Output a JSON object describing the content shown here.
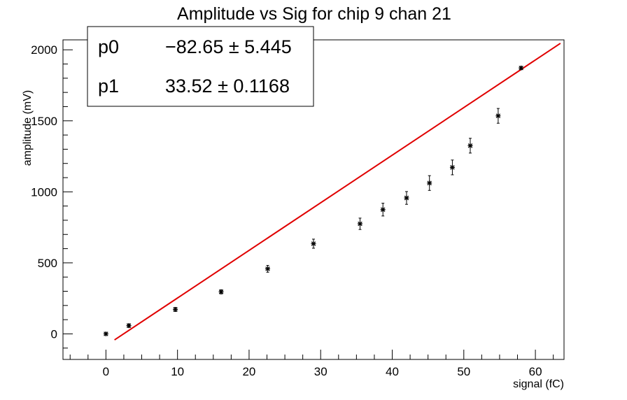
{
  "chart_data": {
    "type": "scatter",
    "title": "Amplitude vs Sig for chip 9 chan 21",
    "xlabel": "signal (fC)",
    "ylabel": "amplitude (mV)",
    "xlim": [
      -6,
      64
    ],
    "ylim": [
      -180,
      2070
    ],
    "x_ticks": [
      0,
      10,
      20,
      30,
      40,
      50,
      60
    ],
    "y_ticks": [
      0,
      500,
      1000,
      1500,
      2000
    ],
    "grid": false,
    "points": [
      {
        "x": 0,
        "y": 0,
        "err": 8
      },
      {
        "x": 3.2,
        "y": 58,
        "err": 12
      },
      {
        "x": 9.7,
        "y": 172,
        "err": 14
      },
      {
        "x": 16.1,
        "y": 296,
        "err": 14
      },
      {
        "x": 22.6,
        "y": 458,
        "err": 24
      },
      {
        "x": 29.0,
        "y": 635,
        "err": 32
      },
      {
        "x": 35.5,
        "y": 775,
        "err": 40
      },
      {
        "x": 38.7,
        "y": 875,
        "err": 45
      },
      {
        "x": 42.0,
        "y": 957,
        "err": 45
      },
      {
        "x": 45.2,
        "y": 1062,
        "err": 52
      },
      {
        "x": 48.4,
        "y": 1172,
        "err": 52
      },
      {
        "x": 50.9,
        "y": 1325,
        "err": 52
      },
      {
        "x": 54.8,
        "y": 1535,
        "err": 52
      },
      {
        "x": 58.0,
        "y": 1872,
        "err": 10
      }
    ],
    "fit": {
      "x_range": [
        1.2,
        63.5
      ],
      "p0": -82.65,
      "p1": 33.52,
      "color": "#e00000"
    },
    "stats_box": {
      "rows": [
        {
          "name": "p0",
          "value": "−82.65 ± 5.445"
        },
        {
          "name": "p1",
          "value": "33.52 ± 0.1168"
        }
      ]
    }
  }
}
